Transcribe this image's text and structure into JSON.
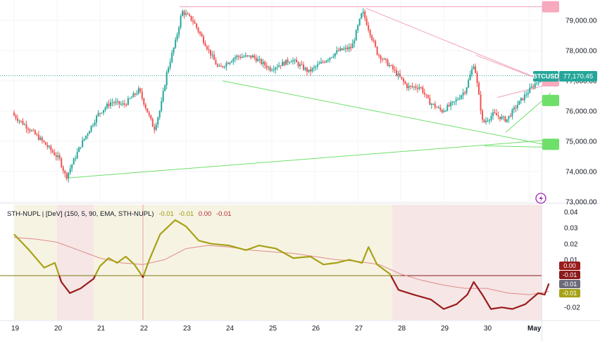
{
  "symbol_label": "BTCUSD",
  "last_price_label": "77,170.45",
  "indicator": {
    "legend": "STH-NUPL | [DeV] (150, 5, 90, EMA, STH-NUPL)",
    "values": [
      "-0.01",
      "-0.01",
      "0.00",
      "-0.01"
    ]
  },
  "colors": {
    "up": "#26a69a",
    "down": "#ef5350",
    "oscillator": "#a6a216",
    "oscillator_negative": "#9a1c1c",
    "signal": "#e08a8a",
    "resistance_trend": "#f3a0b4",
    "support_trend": "#6ee06a",
    "bull_zone": "#f7f3e3",
    "bear_zone": "#f6e6e6"
  },
  "chart_data": [
    {
      "type": "candlestick",
      "title": "",
      "x_ticks": [
        "19",
        "20",
        "21",
        "22",
        "23",
        "24",
        "25",
        "26",
        "27",
        "28",
        "29",
        "30",
        "May"
      ],
      "y_ticks": [
        "79,000.00",
        "78,000.00",
        "77,000.00",
        "76,000.00",
        "75,000.00",
        "74,000.00",
        "73,000.00"
      ],
      "ylim": [
        73000,
        79500
      ],
      "last_price": 77170.45,
      "open": 75950,
      "waypoints": [
        [
          19.0,
          75900
        ],
        [
          19.4,
          75400
        ],
        [
          19.7,
          75000
        ],
        [
          20.1,
          74400
        ],
        [
          20.25,
          73800
        ],
        [
          20.6,
          74900
        ],
        [
          21.0,
          75900
        ],
        [
          21.3,
          76300
        ],
        [
          21.6,
          76200
        ],
        [
          21.95,
          76700
        ],
        [
          22.3,
          75400
        ],
        [
          22.45,
          76100
        ],
        [
          22.6,
          77300
        ],
        [
          22.8,
          78300
        ],
        [
          22.95,
          79300
        ],
        [
          23.2,
          79000
        ],
        [
          23.5,
          78200
        ],
        [
          23.8,
          77400
        ],
        [
          24.2,
          77800
        ],
        [
          24.6,
          77800
        ],
        [
          25.0,
          77400
        ],
        [
          25.5,
          77700
        ],
        [
          25.9,
          77300
        ],
        [
          26.3,
          77700
        ],
        [
          26.6,
          78000
        ],
        [
          26.9,
          78100
        ],
        [
          27.15,
          79300
        ],
        [
          27.3,
          78700
        ],
        [
          27.5,
          77900
        ],
        [
          27.85,
          77400
        ],
        [
          28.2,
          76800
        ],
        [
          28.5,
          76800
        ],
        [
          28.7,
          76300
        ],
        [
          29.0,
          76000
        ],
        [
          29.3,
          76300
        ],
        [
          29.55,
          76700
        ],
        [
          29.75,
          77600
        ],
        [
          29.95,
          75600
        ],
        [
          30.2,
          75900
        ],
        [
          30.5,
          75700
        ],
        [
          30.75,
          76200
        ],
        [
          31.1,
          76800
        ],
        [
          31.3,
          77100
        ],
        [
          31.4,
          77170
        ]
      ]
    },
    {
      "type": "line",
      "title": "",
      "y_ticks": [
        "0.04",
        "0.03",
        "0.02",
        "0.01",
        "-0.02"
      ],
      "ylim": [
        -0.027,
        0.04
      ],
      "value_labels": [
        "0.00",
        "-0.01",
        "-0.01",
        "-0.01"
      ],
      "zone_dates": [
        [
          19.0,
          20.0,
          "bull"
        ],
        [
          20.0,
          20.85,
          "bear"
        ],
        [
          20.85,
          27.8,
          "bull"
        ],
        [
          27.8,
          31.45,
          "bear"
        ]
      ],
      "oscillator": [
        [
          19.0,
          0.026
        ],
        [
          19.35,
          0.016
        ],
        [
          19.7,
          0.005
        ],
        [
          19.95,
          0.008
        ],
        [
          20.1,
          -0.004
        ],
        [
          20.3,
          -0.011
        ],
        [
          20.55,
          -0.008
        ],
        [
          20.85,
          -0.002
        ],
        [
          21.0,
          0.006
        ],
        [
          21.2,
          0.011
        ],
        [
          21.4,
          0.008
        ],
        [
          21.6,
          0.012
        ],
        [
          21.8,
          0.007
        ],
        [
          22.0,
          -0.001
        ],
        [
          22.15,
          0.01
        ],
        [
          22.4,
          0.026
        ],
        [
          22.75,
          0.035
        ],
        [
          23.0,
          0.031
        ],
        [
          23.3,
          0.022
        ],
        [
          23.6,
          0.02
        ],
        [
          24.0,
          0.019
        ],
        [
          24.4,
          0.016
        ],
        [
          24.7,
          0.019
        ],
        [
          25.1,
          0.017
        ],
        [
          25.5,
          0.011
        ],
        [
          25.9,
          0.012
        ],
        [
          26.2,
          0.007
        ],
        [
          26.5,
          0.008
        ],
        [
          26.8,
          0.01
        ],
        [
          27.1,
          0.008
        ],
        [
          27.25,
          0.018
        ],
        [
          27.45,
          0.007
        ],
        [
          27.75,
          0.001
        ],
        [
          27.95,
          -0.009
        ],
        [
          28.3,
          -0.012
        ],
        [
          28.7,
          -0.015
        ],
        [
          29.0,
          -0.021
        ],
        [
          29.3,
          -0.018
        ],
        [
          29.55,
          -0.012
        ],
        [
          29.7,
          -0.004
        ],
        [
          29.9,
          -0.012
        ],
        [
          30.1,
          -0.021
        ],
        [
          30.35,
          -0.02
        ],
        [
          30.6,
          -0.021
        ],
        [
          30.9,
          -0.018
        ],
        [
          31.2,
          -0.011
        ],
        [
          31.35,
          -0.012
        ],
        [
          31.45,
          -0.005
        ]
      ],
      "signal": [
        [
          19.0,
          0.024
        ],
        [
          19.5,
          0.023
        ],
        [
          20.0,
          0.021
        ],
        [
          20.5,
          0.016
        ],
        [
          21.0,
          0.011
        ],
        [
          21.5,
          0.008
        ],
        [
          22.0,
          0.007
        ],
        [
          22.5,
          0.01
        ],
        [
          23.0,
          0.017
        ],
        [
          23.5,
          0.019
        ],
        [
          24.0,
          0.018
        ],
        [
          24.5,
          0.016
        ],
        [
          25.0,
          0.015
        ],
        [
          25.5,
          0.014
        ],
        [
          26.0,
          0.012
        ],
        [
          26.5,
          0.01
        ],
        [
          27.0,
          0.009
        ],
        [
          27.5,
          0.007
        ],
        [
          28.0,
          0.001
        ],
        [
          28.5,
          -0.003
        ],
        [
          29.0,
          -0.006
        ],
        [
          29.5,
          -0.008
        ],
        [
          30.0,
          -0.008
        ],
        [
          30.5,
          -0.011
        ],
        [
          31.0,
          -0.012
        ],
        [
          31.45,
          -0.01
        ]
      ]
    }
  ]
}
